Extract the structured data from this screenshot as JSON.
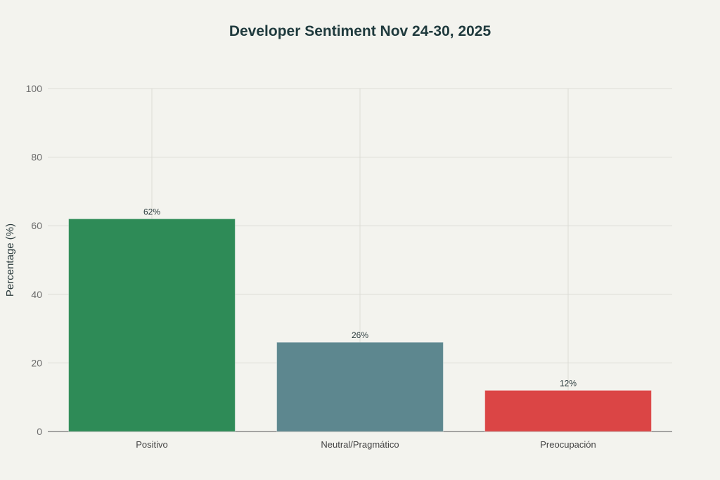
{
  "chart_data": {
    "type": "bar",
    "title": "Developer Sentiment Nov 24-30, 2025",
    "xlabel": "",
    "ylabel": "Percentage (%)",
    "ylim": [
      0,
      100
    ],
    "yticks": [
      0,
      20,
      40,
      60,
      80,
      100
    ],
    "categories": [
      "Positivo",
      "Neutral/Pragmático",
      "Preocupación"
    ],
    "values": [
      62,
      26,
      12
    ],
    "data_labels": [
      "62%",
      "26%",
      "12%"
    ],
    "colors": [
      "#2e8b57",
      "#5d878f",
      "#db4545"
    ],
    "grid": true,
    "legend": "none"
  }
}
